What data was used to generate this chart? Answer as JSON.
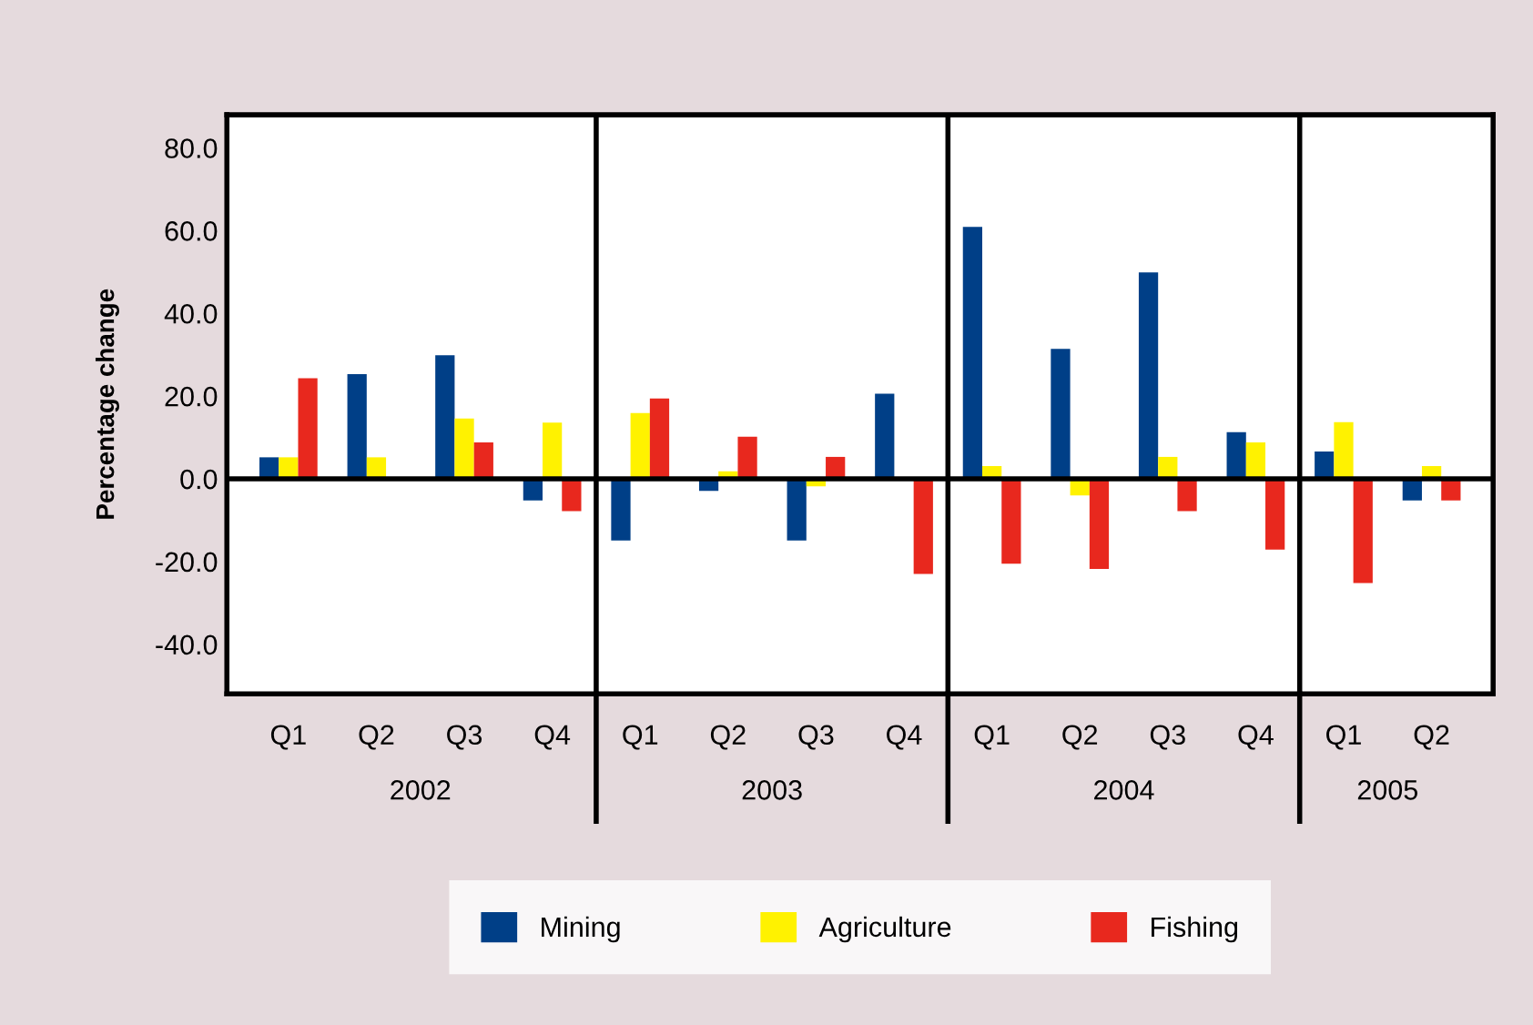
{
  "chart_data": {
    "type": "bar",
    "ylabel": "Percentage change",
    "categories": [
      "Q1",
      "Q2",
      "Q3",
      "Q4",
      "Q1",
      "Q2",
      "Q3",
      "Q4",
      "Q1",
      "Q2",
      "Q3",
      "Q4",
      "Q1",
      "Q2"
    ],
    "annotations": [
      "2002",
      "2003",
      "2004",
      "2005"
    ],
    "series": [
      {
        "name": "Mining",
        "color": "#003f87",
        "values": [
          5.2,
          25.3,
          29.9,
          -5.2,
          -14.9,
          -2.9,
          -14.9,
          20.6,
          60.9,
          31.4,
          49.9,
          11.3,
          6.6,
          -5.2
        ]
      },
      {
        "name": "Agriculture",
        "color": "#fff200",
        "values": [
          5.2,
          5.2,
          14.6,
          13.6,
          15.9,
          1.8,
          -1.8,
          null,
          3.1,
          -4.0,
          5.3,
          8.8,
          13.7,
          3.1
        ]
      },
      {
        "name": "Fishing",
        "color": "#e8281e",
        "values": [
          24.3,
          null,
          8.8,
          -7.8,
          19.4,
          10.2,
          5.3,
          -23.0,
          -20.5,
          -21.8,
          -7.8,
          -17.1,
          -25.2,
          -5.2
        ]
      }
    ],
    "ylim": [
      -52,
      88
    ],
    "yticks": [
      {
        "value": -40,
        "label": "-40.0"
      },
      {
        "value": -20,
        "label": "-20.0"
      },
      {
        "value": 0,
        "label": "0.0"
      },
      {
        "value": 20,
        "label": "20.0"
      },
      {
        "value": 40,
        "label": "40.0"
      },
      {
        "value": 60,
        "label": "60.0"
      },
      {
        "value": 80,
        "label": "80.0"
      }
    ],
    "grid": false,
    "ref_lines": [
      {
        "axis": "y",
        "value": 0,
        "color": "#000000"
      }
    ],
    "legend": "bottom"
  }
}
